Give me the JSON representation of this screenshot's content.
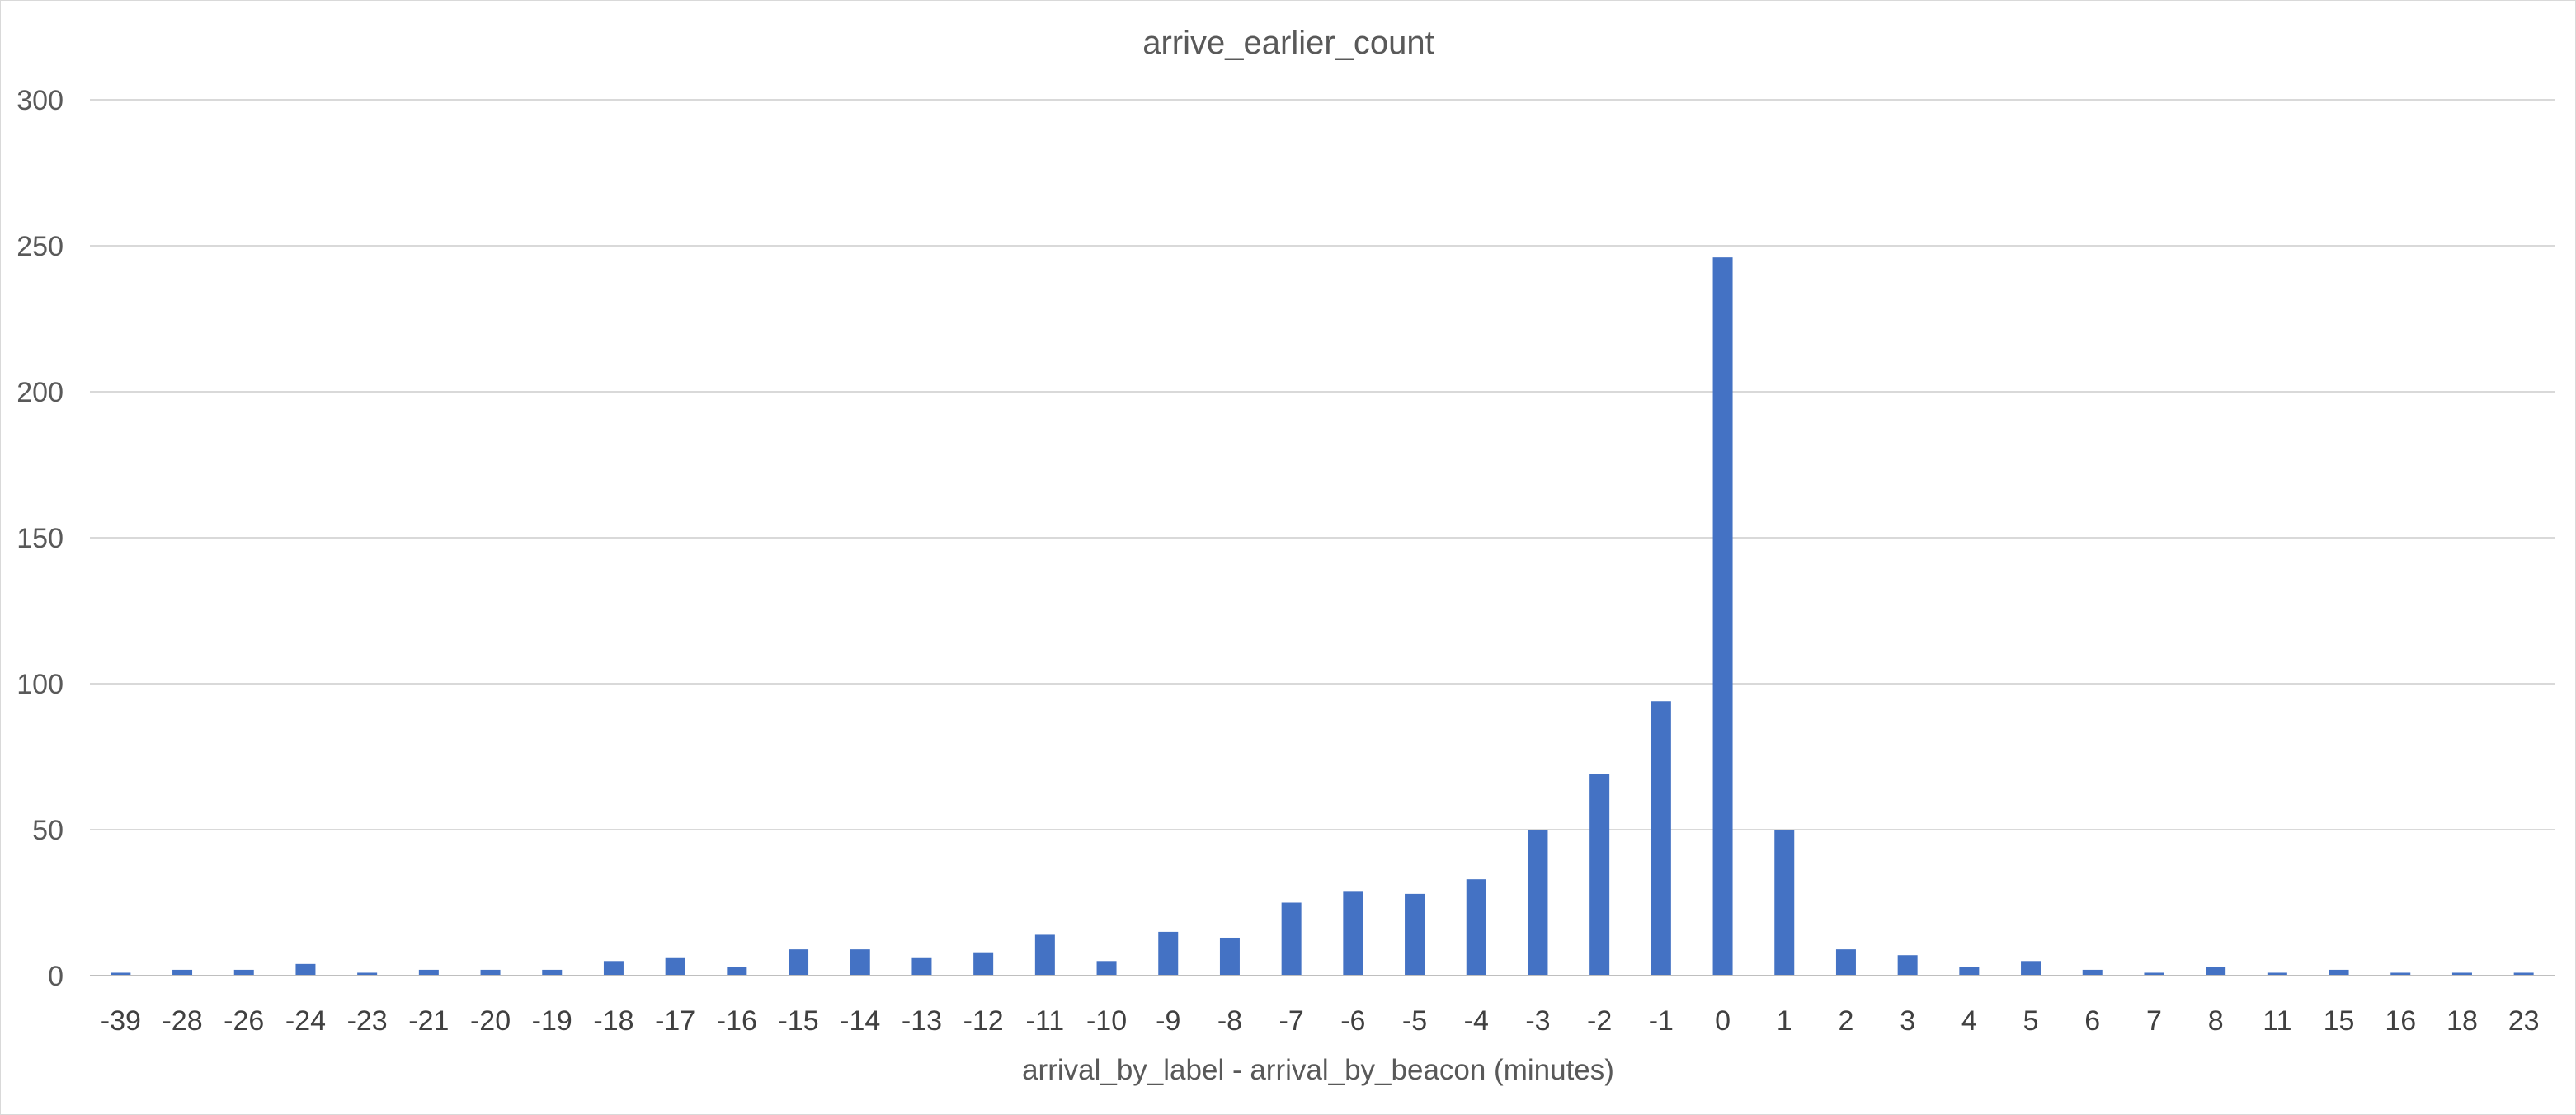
{
  "chart_data": {
    "type": "bar",
    "title": "arrive_earlier_count",
    "xlabel": "arrival_by_label - arrival_by_beacon (minutes)",
    "ylabel": "",
    "ylim": [
      0,
      300
    ],
    "yticks": [
      "0",
      "50",
      "100",
      "150",
      "200",
      "250",
      "300"
    ],
    "grid": true,
    "legend": "none",
    "bar_color": "#4472C4",
    "categories": [
      "-39",
      "-28",
      "-26",
      "-24",
      "-23",
      "-21",
      "-20",
      "-19",
      "-18",
      "-17",
      "-16",
      "-15",
      "-14",
      "-13",
      "-12",
      "-11",
      "-10",
      "-9",
      "-8",
      "-7",
      "-6",
      "-5",
      "-4",
      "-3",
      "-2",
      "-1",
      "0",
      "1",
      "2",
      "3",
      "4",
      "5",
      "6",
      "7",
      "8",
      "11",
      "15",
      "16",
      "18",
      "23"
    ],
    "values": [
      1,
      2,
      2,
      4,
      1,
      2,
      2,
      2,
      5,
      6,
      3,
      9,
      9,
      6,
      8,
      14,
      5,
      15,
      13,
      25,
      29,
      28,
      33,
      50,
      69,
      94,
      246,
      50,
      9,
      7,
      3,
      5,
      2,
      1,
      3,
      1,
      2,
      1,
      1,
      1
    ]
  }
}
